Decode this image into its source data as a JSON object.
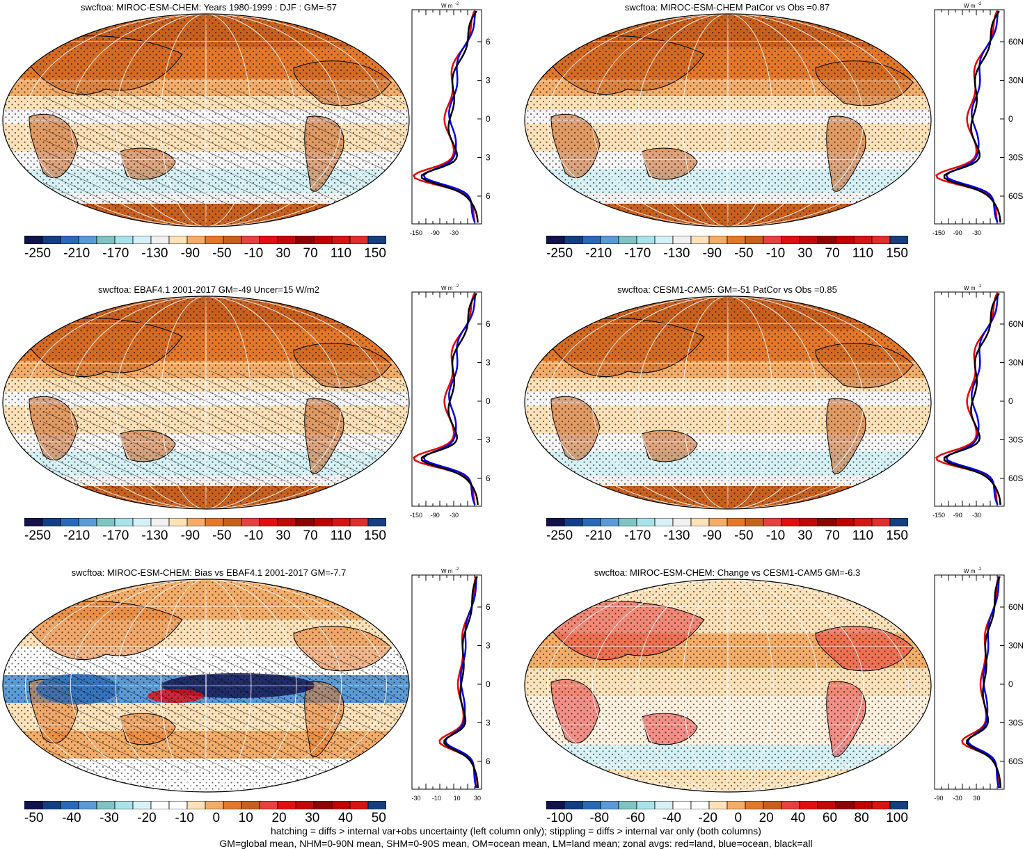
{
  "panels": [
    {
      "title": "swcftoa: MIROC-ESM-CHEM: Years 1980-1999 : DJF : GM=-57",
      "zonal_ticks": [
        "-150",
        "-90",
        "-30"
      ],
      "colorbar_labels": [
        "-250",
        "-210",
        "-170",
        "-130",
        "-90",
        "-50",
        "-10",
        "30",
        "70",
        "110",
        "150"
      ],
      "style": "mean",
      "hatch": true
    },
    {
      "title": "swcftoa: MIROC-ESM-CHEM PatCor vs Obs =0.87",
      "zonal_ticks": [
        "-150",
        "-90",
        "-30"
      ],
      "colorbar_labels": [
        "-250",
        "-210",
        "-170",
        "-130",
        "-90",
        "-50",
        "-10",
        "30",
        "70",
        "110",
        "150"
      ],
      "style": "mean",
      "hatch": false
    },
    {
      "title": "swcftoa: EBAF4.1 2001-2017 GM=-49 Uncer=15 W/m2",
      "zonal_ticks": [
        "-150",
        "-90",
        "-30"
      ],
      "colorbar_labels": [
        "-250",
        "-210",
        "-170",
        "-130",
        "-90",
        "-50",
        "-10",
        "30",
        "70",
        "110",
        "150"
      ],
      "style": "mean",
      "hatch": true
    },
    {
      "title": "swcftoa: CESM1-CAM5: GM=-51 PatCor vs Obs =0.85",
      "zonal_ticks": [
        "-150",
        "-90",
        "-30"
      ],
      "colorbar_labels": [
        "-250",
        "-210",
        "-170",
        "-130",
        "-90",
        "-50",
        "-10",
        "30",
        "70",
        "110",
        "150"
      ],
      "style": "mean",
      "hatch": false
    },
    {
      "title": "swcftoa: MIROC-ESM-CHEM: Bias vs EBAF4.1 2001-2017 GM=-7.7",
      "zonal_ticks": [
        "-30",
        "-10",
        "10",
        "30"
      ],
      "colorbar_labels": [
        "-50",
        "-40",
        "-30",
        "-20",
        "-10",
        "0",
        "10",
        "20",
        "30",
        "40",
        "50"
      ],
      "style": "bias",
      "hatch": true
    },
    {
      "title": "swcftoa: MIROC-ESM-CHEM: Change vs CESM1-CAM5 GM=-6.3",
      "zonal_ticks": [
        "-90",
        "-30",
        "30"
      ],
      "colorbar_labels": [
        "-100",
        "-80",
        "-60",
        "-40",
        "-20",
        "0",
        "20",
        "40",
        "60",
        "80",
        "100"
      ],
      "style": "change",
      "hatch": false
    }
  ],
  "lat_labels": [
    "60N",
    "30N",
    "0",
    "30S",
    "60S"
  ],
  "units_label": "W m",
  "units_exp": "-2",
  "footer": {
    "line1": "hatching = diffs > internal var+obs uncertainty (left column only); stippling = diffs > internal var only (both columns)",
    "line2": "GM=global mean, NHM=0-90N mean, SHM=0-90S mean, OM=ocean mean, LM=land mean; zonal avgs: red=land, blue=ocean, black=all"
  },
  "colors": {
    "mean_scale": [
      "#12124d",
      "#133e84",
      "#2a6ab5",
      "#5b9bd5",
      "#7fc4c2",
      "#a9e2ea",
      "#d6f1f5",
      "#f1f1f1",
      "#fde1b8",
      "#f3ad6a",
      "#e3782a",
      "#c95f1c",
      "#e84040",
      "#e60d10",
      "#c40808",
      "#8e0404",
      "#c20000",
      "#d91212",
      "#e32d2d",
      "#163f80"
    ],
    "bias_scale": [
      "#12124d",
      "#133e84",
      "#2a6ab5",
      "#5b9bd5",
      "#7fc4c2",
      "#a9e2ea",
      "#d6f1f5",
      "#ffffff",
      "#ffffff",
      "#fde1b8",
      "#f3ad6a",
      "#e3782a",
      "#c95f1c",
      "#e84040",
      "#e60d10",
      "#c40808",
      "#8e0404",
      "#c20000",
      "#d91212",
      "#163f80"
    ],
    "land_line": "#e60000",
    "ocean_line": "#0000e6",
    "all_line": "#000000"
  }
}
